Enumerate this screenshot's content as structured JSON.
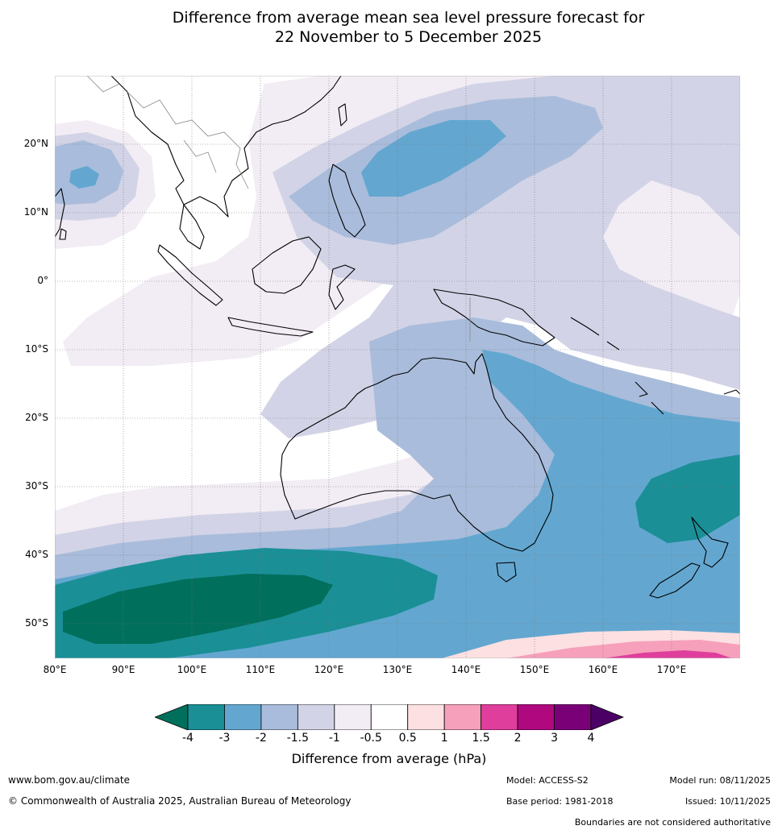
{
  "title": {
    "line1": "Difference from average mean sea level pressure forecast for",
    "line2": "22 November to 5 December 2025"
  },
  "map": {
    "region": "Australasia / Indian Ocean / West Pacific",
    "lat_labels": [
      "20°N",
      "10°N",
      "0°",
      "10°S",
      "20°S",
      "30°S",
      "40°S",
      "50°S"
    ],
    "lon_labels": [
      "80°E",
      "90°E",
      "100°E",
      "110°E",
      "120°E",
      "130°E",
      "140°E",
      "150°E",
      "160°E",
      "170°E"
    ],
    "lat_range": [
      30,
      -55
    ],
    "lon_range": [
      80,
      180
    ]
  },
  "legend": {
    "title": "Difference from average (hPa)",
    "ticks": [
      "-4",
      "-3",
      "-2",
      "-1.5",
      "-1",
      "-0.5",
      "0.5",
      "1",
      "1.5",
      "2",
      "3",
      "4"
    ],
    "colors": [
      "#1a8f96",
      "#63a7d0",
      "#a9bcdb",
      "#d2d3e6",
      "#f2ecf4",
      "#ffffff",
      "#fde0e1",
      "#f6a0bb",
      "#e03e9c",
      "#b0087e",
      "#7a0078"
    ],
    "under_color": "#006f5b",
    "over_color": "#4a0064"
  },
  "footer": {
    "website": "www.bom.gov.au/climate",
    "copyright": "© Commonwealth of Australia 2025, Australian Bureau of Meteorology",
    "model": "Model: ACCESS-S2",
    "base_period": "Base period: 1981-2018",
    "model_run": "Model run: 08/11/2025",
    "issued": "Issued: 10/11/2025",
    "disclaimer": "Boundaries are not considered authoritative"
  }
}
